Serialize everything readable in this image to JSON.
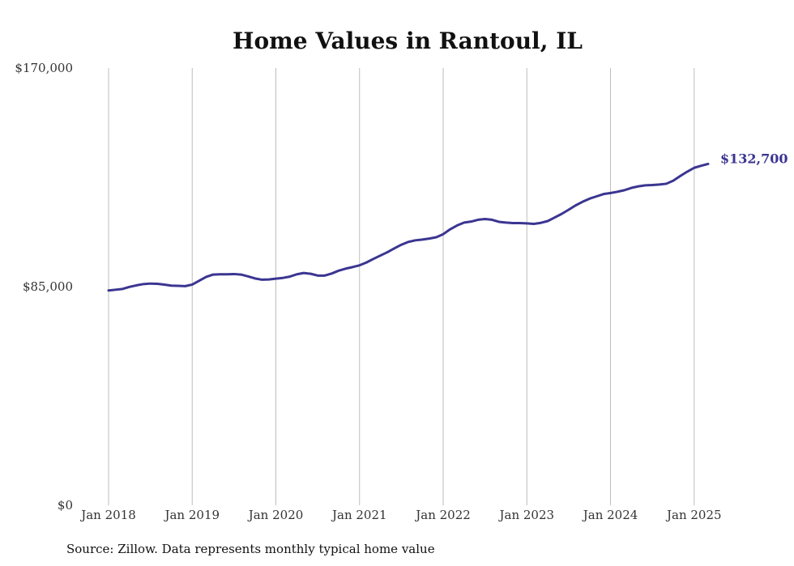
{
  "chart_data": {
    "type": "line",
    "title": "Home Values in Rantoul, IL",
    "xlabel": "",
    "ylabel": "",
    "ylim": [
      0,
      170000
    ],
    "y_ticks": [
      "$0",
      "$85,000",
      "$170,000"
    ],
    "y_tick_values": [
      0,
      85000,
      170000
    ],
    "x_ticks": [
      "Jan 2018",
      "Jan 2019",
      "Jan 2020",
      "Jan 2021",
      "Jan 2022",
      "Jan 2023",
      "Jan 2024",
      "Jan 2025"
    ],
    "xlim": [
      "2018-01",
      "2025-03"
    ],
    "grid": "vertical",
    "line_color": "#3b3591",
    "end_label": "$132,700",
    "source": "Source: Zillow. Data represents monthly typical home value",
    "series": [
      {
        "values": [
          [
            "2018-01",
            83500
          ],
          [
            "2018-02",
            83800
          ],
          [
            "2018-03",
            84100
          ],
          [
            "2018-04",
            84900
          ],
          [
            "2018-05",
            85500
          ],
          [
            "2018-06",
            86000
          ],
          [
            "2018-07",
            86200
          ],
          [
            "2018-08",
            86100
          ],
          [
            "2018-09",
            85800
          ],
          [
            "2018-10",
            85400
          ],
          [
            "2018-11",
            85300
          ],
          [
            "2018-12",
            85200
          ],
          [
            "2019-01",
            85800
          ],
          [
            "2019-02",
            87300
          ],
          [
            "2019-03",
            88800
          ],
          [
            "2019-04",
            89700
          ],
          [
            "2019-05",
            89800
          ],
          [
            "2019-06",
            89800
          ],
          [
            "2019-07",
            89900
          ],
          [
            "2019-08",
            89700
          ],
          [
            "2019-09",
            89000
          ],
          [
            "2019-10",
            88200
          ],
          [
            "2019-11",
            87700
          ],
          [
            "2019-12",
            87800
          ],
          [
            "2020-01",
            88100
          ],
          [
            "2020-02",
            88400
          ],
          [
            "2020-03",
            88900
          ],
          [
            "2020-04",
            89800
          ],
          [
            "2020-05",
            90300
          ],
          [
            "2020-06",
            90000
          ],
          [
            "2020-07",
            89300
          ],
          [
            "2020-08",
            89300
          ],
          [
            "2020-09",
            90100
          ],
          [
            "2020-10",
            91200
          ],
          [
            "2020-11",
            92000
          ],
          [
            "2020-12",
            92600
          ],
          [
            "2021-01",
            93300
          ],
          [
            "2021-02",
            94400
          ],
          [
            "2021-03",
            95800
          ],
          [
            "2021-04",
            97100
          ],
          [
            "2021-05",
            98400
          ],
          [
            "2021-06",
            99900
          ],
          [
            "2021-07",
            101300
          ],
          [
            "2021-08",
            102400
          ],
          [
            "2021-09",
            103000
          ],
          [
            "2021-10",
            103300
          ],
          [
            "2021-11",
            103700
          ],
          [
            "2021-12",
            104200
          ],
          [
            "2022-01",
            105400
          ],
          [
            "2022-02",
            107300
          ],
          [
            "2022-03",
            108800
          ],
          [
            "2022-04",
            109900
          ],
          [
            "2022-05",
            110300
          ],
          [
            "2022-06",
            111000
          ],
          [
            "2022-07",
            111300
          ],
          [
            "2022-08",
            111000
          ],
          [
            "2022-09",
            110200
          ],
          [
            "2022-10",
            109900
          ],
          [
            "2022-11",
            109700
          ],
          [
            "2022-12",
            109700
          ],
          [
            "2023-01",
            109600
          ],
          [
            "2023-02",
            109400
          ],
          [
            "2023-03",
            109800
          ],
          [
            "2023-04",
            110500
          ],
          [
            "2023-05",
            111900
          ],
          [
            "2023-06",
            113300
          ],
          [
            "2023-07",
            114900
          ],
          [
            "2023-08",
            116600
          ],
          [
            "2023-09",
            118000
          ],
          [
            "2023-10",
            119200
          ],
          [
            "2023-11",
            120100
          ],
          [
            "2023-12",
            121000
          ],
          [
            "2024-01",
            121400
          ],
          [
            "2024-02",
            121900
          ],
          [
            "2024-03",
            122500
          ],
          [
            "2024-04",
            123400
          ],
          [
            "2024-05",
            124000
          ],
          [
            "2024-06",
            124400
          ],
          [
            "2024-07",
            124500
          ],
          [
            "2024-08",
            124700
          ],
          [
            "2024-09",
            125000
          ],
          [
            "2024-10",
            126200
          ],
          [
            "2024-11",
            128000
          ],
          [
            "2024-12",
            129700
          ],
          [
            "2025-01",
            131200
          ],
          [
            "2025-02",
            132000
          ],
          [
            "2025-03",
            132700
          ]
        ]
      }
    ]
  }
}
